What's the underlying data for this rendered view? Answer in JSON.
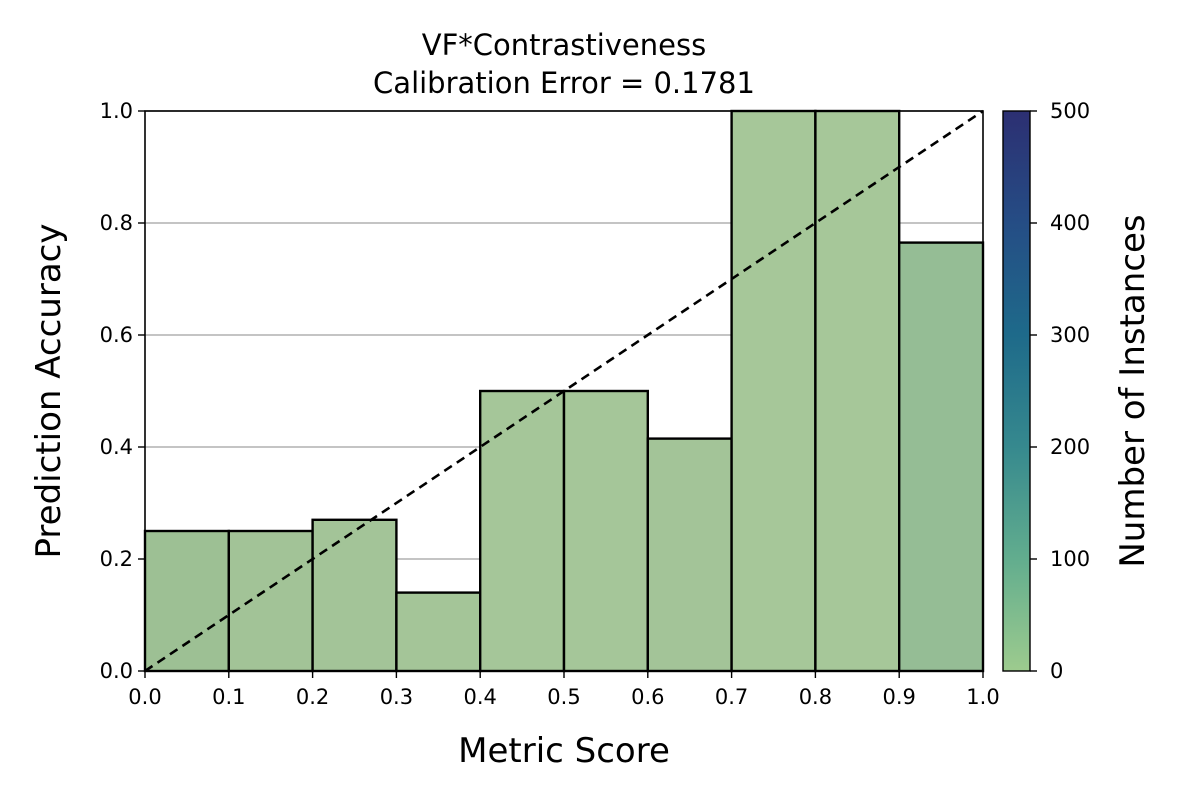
{
  "chart_data": {
    "type": "bar",
    "title": "VF*Contrastiveness",
    "subtitle": "Calibration Error = 0.1781",
    "xlabel": "Metric Score",
    "ylabel": "Prediction Accuracy",
    "xlim": [
      0.0,
      1.0
    ],
    "ylim": [
      0.0,
      1.0
    ],
    "xticks": [
      "0.0",
      "0.1",
      "0.2",
      "0.3",
      "0.4",
      "0.5",
      "0.6",
      "0.7",
      "0.8",
      "0.9",
      "1.0"
    ],
    "yticks": [
      "0.0",
      "0.2",
      "0.4",
      "0.6",
      "0.8",
      "1.0"
    ],
    "grid": "horizontal",
    "bins": [
      {
        "x0": 0.0,
        "x1": 0.1,
        "accuracy": 0.25,
        "count": 25,
        "color": "#9dc094"
      },
      {
        "x0": 0.1,
        "x1": 0.2,
        "accuracy": 0.25,
        "count": 15,
        "color": "#a2c397"
      },
      {
        "x0": 0.2,
        "x1": 0.3,
        "accuracy": 0.27,
        "count": 12,
        "color": "#a3c498"
      },
      {
        "x0": 0.3,
        "x1": 0.4,
        "accuracy": 0.14,
        "count": 10,
        "color": "#a4c598"
      },
      {
        "x0": 0.4,
        "x1": 0.5,
        "accuracy": 0.5,
        "count": 6,
        "color": "#a5c699"
      },
      {
        "x0": 0.5,
        "x1": 0.6,
        "accuracy": 0.5,
        "count": 6,
        "color": "#a5c699"
      },
      {
        "x0": 0.6,
        "x1": 0.7,
        "accuracy": 0.415,
        "count": 14,
        "color": "#a3c498"
      },
      {
        "x0": 0.7,
        "x1": 0.8,
        "accuracy": 1.0,
        "count": 4,
        "color": "#a6c799"
      },
      {
        "x0": 0.8,
        "x1": 0.9,
        "accuracy": 1.0,
        "count": 4,
        "color": "#a6c799"
      },
      {
        "x0": 0.9,
        "x1": 1.0,
        "accuracy": 0.765,
        "count": 45,
        "color": "#95bd95"
      }
    ],
    "reference_line": {
      "from": [
        0.0,
        0.0
      ],
      "to": [
        1.0,
        1.0
      ],
      "style": "dashed",
      "color": "#000000"
    },
    "colorbar": {
      "label": "Number of Instances",
      "range": [
        0,
        500
      ],
      "ticks": [
        "0",
        "100",
        "200",
        "300",
        "400",
        "500"
      ],
      "colors": [
        "#9dcb8e",
        "#62ad8e",
        "#36898e",
        "#1e6a8a",
        "#254d85",
        "#2c2f72"
      ]
    }
  }
}
